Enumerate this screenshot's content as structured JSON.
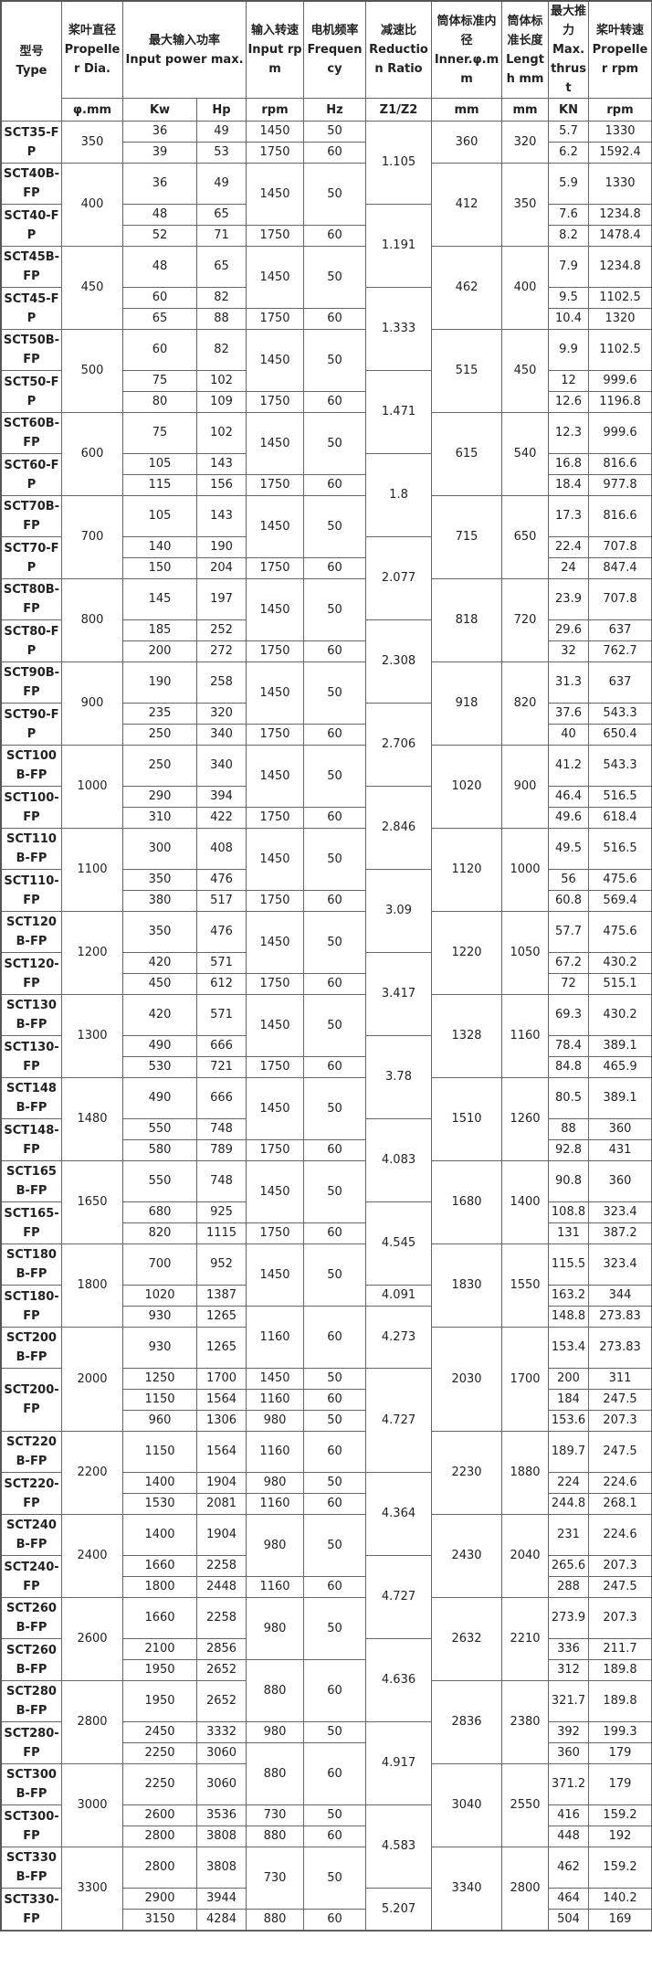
{
  "header": {
    "type": {
      "zh": "型号",
      "en": "Type"
    },
    "dia": {
      "zh": "桨叶直径",
      "en": "Propeller Dia.",
      "unit": "φ.mm"
    },
    "power": {
      "zh": "最大输入功率",
      "en": "Input power max.",
      "unit_kw": "Kw",
      "unit_hp": "Hp"
    },
    "rpm": {
      "zh": "输入转速",
      "en": "Input rpm",
      "unit": "rpm"
    },
    "freq": {
      "zh": "电机频率",
      "en": "Frequency",
      "unit": "Hz"
    },
    "ratio": {
      "zh": "减速比",
      "en": "Reduction Ratio",
      "unit": "Z1/Z2"
    },
    "inner": {
      "zh": "筒体标准内径",
      "en": "Inner.φ.mm",
      "unit": "mm"
    },
    "length": {
      "zh": "筒体标准长度",
      "en": "Length mm",
      "unit": "mm"
    },
    "thrust": {
      "zh": "最大推力",
      "en": "Max. thrust",
      "unit": "KN"
    },
    "prop_rpm": {
      "zh": "桨叶转速",
      "en": "Propeller rpm",
      "unit": "rpm"
    }
  },
  "columns": [
    "model",
    "dia",
    "kw",
    "hp",
    "rpm",
    "hz",
    "ratio",
    "inner",
    "length",
    "thrust",
    "prop_rpm"
  ],
  "rows": [
    [
      "SCT35-FP",
      "350",
      "36",
      "49",
      "1450",
      "50",
      "1.105",
      "360",
      "320",
      "5.7",
      "1330"
    ],
    [
      null,
      null,
      "39",
      "53",
      "1750",
      "60",
      null,
      null,
      null,
      "6.2",
      "1592.4"
    ],
    [
      "SCT40B-FP",
      "400",
      "36",
      "49",
      "1450",
      "50",
      null,
      "412",
      "350",
      "5.9",
      "1330"
    ],
    [
      "SCT40-FP",
      null,
      "48",
      "65",
      null,
      null,
      "1.191",
      null,
      null,
      "7.6",
      "1234.8"
    ],
    [
      null,
      null,
      "52",
      "71",
      "1750",
      "60",
      null,
      null,
      null,
      "8.2",
      "1478.4"
    ],
    [
      "SCT45B-FP",
      "450",
      "48",
      "65",
      "1450",
      "50",
      null,
      "462",
      "400",
      "7.9",
      "1234.8"
    ],
    [
      "SCT45-FP",
      null,
      "60",
      "82",
      null,
      null,
      "1.333",
      null,
      null,
      "9.5",
      "1102.5"
    ],
    [
      null,
      null,
      "65",
      "88",
      "1750",
      "60",
      null,
      null,
      null,
      "10.4",
      "1320"
    ],
    [
      "SCT50B-FP",
      "500",
      "60",
      "82",
      "1450",
      "50",
      null,
      "515",
      "450",
      "9.9",
      "1102.5"
    ],
    [
      "SCT50-FP",
      null,
      "75",
      "102",
      null,
      null,
      "1.471",
      null,
      null,
      "12",
      "999.6"
    ],
    [
      null,
      null,
      "80",
      "109",
      "1750",
      "60",
      null,
      null,
      null,
      "12.6",
      "1196.8"
    ],
    [
      "SCT60B-FP",
      "600",
      "75",
      "102",
      "1450",
      "50",
      null,
      "615",
      "540",
      "12.3",
      "999.6"
    ],
    [
      "SCT60-FP",
      null,
      "105",
      "143",
      null,
      null,
      "1.8",
      null,
      null,
      "16.8",
      "816.6"
    ],
    [
      null,
      null,
      "115",
      "156",
      "1750",
      "60",
      null,
      null,
      null,
      "18.4",
      "977.8"
    ],
    [
      "SCT70B-FP",
      "700",
      "105",
      "143",
      "1450",
      "50",
      null,
      "715",
      "650",
      "17.3",
      "816.6"
    ],
    [
      "SCT70-FP",
      null,
      "140",
      "190",
      null,
      null,
      "2.077",
      null,
      null,
      "22.4",
      "707.8"
    ],
    [
      null,
      null,
      "150",
      "204",
      "1750",
      "60",
      null,
      null,
      null,
      "24",
      "847.4"
    ],
    [
      "SCT80B-FP",
      "800",
      "145",
      "197",
      "1450",
      "50",
      null,
      "818",
      "720",
      "23.9",
      "707.8"
    ],
    [
      "SCT80-FP",
      null,
      "185",
      "252",
      null,
      null,
      "2.308",
      null,
      null,
      "29.6",
      "637"
    ],
    [
      null,
      null,
      "200",
      "272",
      "1750",
      "60",
      null,
      null,
      null,
      "32",
      "762.7"
    ],
    [
      "SCT90B-FP",
      "900",
      "190",
      "258",
      "1450",
      "50",
      null,
      "918",
      "820",
      "31.3",
      "637"
    ],
    [
      "SCT90-FP",
      null,
      "235",
      "320",
      null,
      null,
      "2.706",
      null,
      null,
      "37.6",
      "543.3"
    ],
    [
      null,
      null,
      "250",
      "340",
      "1750",
      "60",
      null,
      null,
      null,
      "40",
      "650.4"
    ],
    [
      "SCT100B-FP",
      "1000",
      "250",
      "340",
      "1450",
      "50",
      null,
      "1020",
      "900",
      "41.2",
      "543.3"
    ],
    [
      "SCT100-FP",
      null,
      "290",
      "394",
      null,
      null,
      "2.846",
      null,
      null,
      "46.4",
      "516.5"
    ],
    [
      null,
      null,
      "310",
      "422",
      "1750",
      "60",
      null,
      null,
      null,
      "49.6",
      "618.4"
    ],
    [
      "SCT110B-FP",
      "1100",
      "300",
      "408",
      "1450",
      "50",
      null,
      "1120",
      "1000",
      "49.5",
      "516.5"
    ],
    [
      "SCT110-FP",
      null,
      "350",
      "476",
      null,
      null,
      "3.09",
      null,
      null,
      "56",
      "475.6"
    ],
    [
      null,
      null,
      "380",
      "517",
      "1750",
      "60",
      null,
      null,
      null,
      "60.8",
      "569.4"
    ],
    [
      "SCT120B-FP",
      "1200",
      "350",
      "476",
      "1450",
      "50",
      null,
      "1220",
      "1050",
      "57.7",
      "475.6"
    ],
    [
      "SCT120-FP",
      null,
      "420",
      "571",
      null,
      null,
      "3.417",
      null,
      null,
      "67.2",
      "430.2"
    ],
    [
      null,
      null,
      "450",
      "612",
      "1750",
      "60",
      null,
      null,
      null,
      "72",
      "515.1"
    ],
    [
      "SCT130B-FP",
      "1300",
      "420",
      "571",
      "1450",
      "50",
      null,
      "1328",
      "1160",
      "69.3",
      "430.2"
    ],
    [
      "SCT130-FP",
      null,
      "490",
      "666",
      null,
      null,
      "3.78",
      null,
      null,
      "78.4",
      "389.1"
    ],
    [
      null,
      null,
      "530",
      "721",
      "1750",
      "60",
      null,
      null,
      null,
      "84.8",
      "465.9"
    ],
    [
      "SCT148B-FP",
      "1480",
      "490",
      "666",
      "1450",
      "50",
      null,
      "1510",
      "1260",
      "80.5",
      "389.1"
    ],
    [
      "SCT148-FP",
      null,
      "550",
      "748",
      null,
      null,
      "4.083",
      null,
      null,
      "88",
      "360"
    ],
    [
      null,
      null,
      "580",
      "789",
      "1750",
      "60",
      null,
      null,
      null,
      "92.8",
      "431"
    ],
    [
      "SCT165B-FP",
      "1650",
      "550",
      "748",
      "1450",
      "50",
      null,
      "1680",
      "1400",
      "90.8",
      "360"
    ],
    [
      "SCT165-FP",
      null,
      "680",
      "925",
      null,
      null,
      "4.545",
      null,
      null,
      "108.8",
      "323.4"
    ],
    [
      null,
      null,
      "820",
      "1115",
      "1750",
      "60",
      null,
      null,
      null,
      "131",
      "387.2"
    ],
    [
      "SCT180B-FP",
      "1800",
      "700",
      "952",
      "1450",
      "50",
      null,
      "1830",
      "1550",
      "115.5",
      "323.4"
    ],
    [
      "SCT180-FP",
      null,
      "1020",
      "1387",
      null,
      null,
      "4.091",
      null,
      null,
      "163.2",
      "344"
    ],
    [
      null,
      null,
      "930",
      "1265",
      "1160",
      "60",
      "4.273",
      null,
      null,
      "148.8",
      "273.83"
    ],
    [
      "SCT200B-FP",
      "2000",
      "930",
      "1265",
      null,
      null,
      null,
      "2030",
      "1700",
      "153.4",
      "273.83"
    ],
    [
      "SCT200-FP",
      null,
      "1250",
      "1700",
      "1450",
      "50",
      "4.727",
      null,
      null,
      "200",
      "311"
    ],
    [
      null,
      null,
      "1150",
      "1564",
      "1160",
      "60",
      null,
      null,
      null,
      "184",
      "247.5"
    ],
    [
      null,
      null,
      "960",
      "1306",
      "980",
      "50",
      null,
      null,
      null,
      "153.6",
      "207.3"
    ],
    [
      "SCT220B-FP",
      "2200",
      "1150",
      "1564",
      "1160",
      "60",
      null,
      "2230",
      "1880",
      "189.7",
      "247.5"
    ],
    [
      "SCT220-FP",
      null,
      "1400",
      "1904",
      "980",
      "50",
      "4.364",
      null,
      null,
      "224",
      "224.6"
    ],
    [
      null,
      null,
      "1530",
      "2081",
      "1160",
      "60",
      null,
      null,
      null,
      "244.8",
      "268.1"
    ],
    [
      "SCT240B-FP",
      "2400",
      "1400",
      "1904",
      "980",
      "50",
      null,
      "2430",
      "2040",
      "231",
      "224.6"
    ],
    [
      "SCT240-FP",
      null,
      "1660",
      "2258",
      null,
      null,
      "4.727",
      null,
      null,
      "265.6",
      "207.3"
    ],
    [
      null,
      null,
      "1800",
      "2448",
      "1160",
      "60",
      null,
      null,
      null,
      "288",
      "247.5"
    ],
    [
      "SCT260B-FP",
      "2600",
      "1660",
      "2258",
      "980",
      "50",
      null,
      "2632",
      "2210",
      "273.9",
      "207.3"
    ],
    [
      "SCT260B-FP",
      null,
      "2100",
      "2856",
      null,
      null,
      "4.636",
      null,
      null,
      "336",
      "211.7"
    ],
    [
      null,
      null,
      "1950",
      "2652",
      "880",
      "60",
      null,
      null,
      null,
      "312",
      "189.8"
    ],
    [
      "SCT280B-FP",
      "2800",
      "1950",
      "2652",
      null,
      null,
      null,
      "2836",
      "2380",
      "321.7",
      "189.8"
    ],
    [
      "SCT280-FP",
      null,
      "2450",
      "3332",
      "980",
      "50",
      "4.917",
      null,
      null,
      "392",
      "199.3"
    ],
    [
      null,
      null,
      "2250",
      "3060",
      "880",
      "60",
      null,
      null,
      null,
      "360",
      "179"
    ],
    [
      "SCT300B-FP",
      "3000",
      "2250",
      "3060",
      null,
      null,
      null,
      "3040",
      "2550",
      "371.2",
      "179"
    ],
    [
      "SCT300-FP",
      null,
      "2600",
      "3536",
      "730",
      "50",
      "4.583",
      null,
      null,
      "416",
      "159.2"
    ],
    [
      null,
      null,
      "2800",
      "3808",
      "880",
      "60",
      null,
      null,
      null,
      "448",
      "192"
    ],
    [
      "SCT330B-FP",
      "3300",
      "2800",
      "3808",
      "730",
      "50",
      null,
      "3340",
      "2800",
      "462",
      "159.2"
    ],
    [
      "SCT330-FP",
      null,
      "2900",
      "3944",
      null,
      null,
      "5.207",
      null,
      null,
      "464",
      "140.2"
    ],
    [
      null,
      null,
      "3150",
      "4284",
      "880",
      "60",
      null,
      null,
      null,
      "504",
      "169"
    ]
  ]
}
